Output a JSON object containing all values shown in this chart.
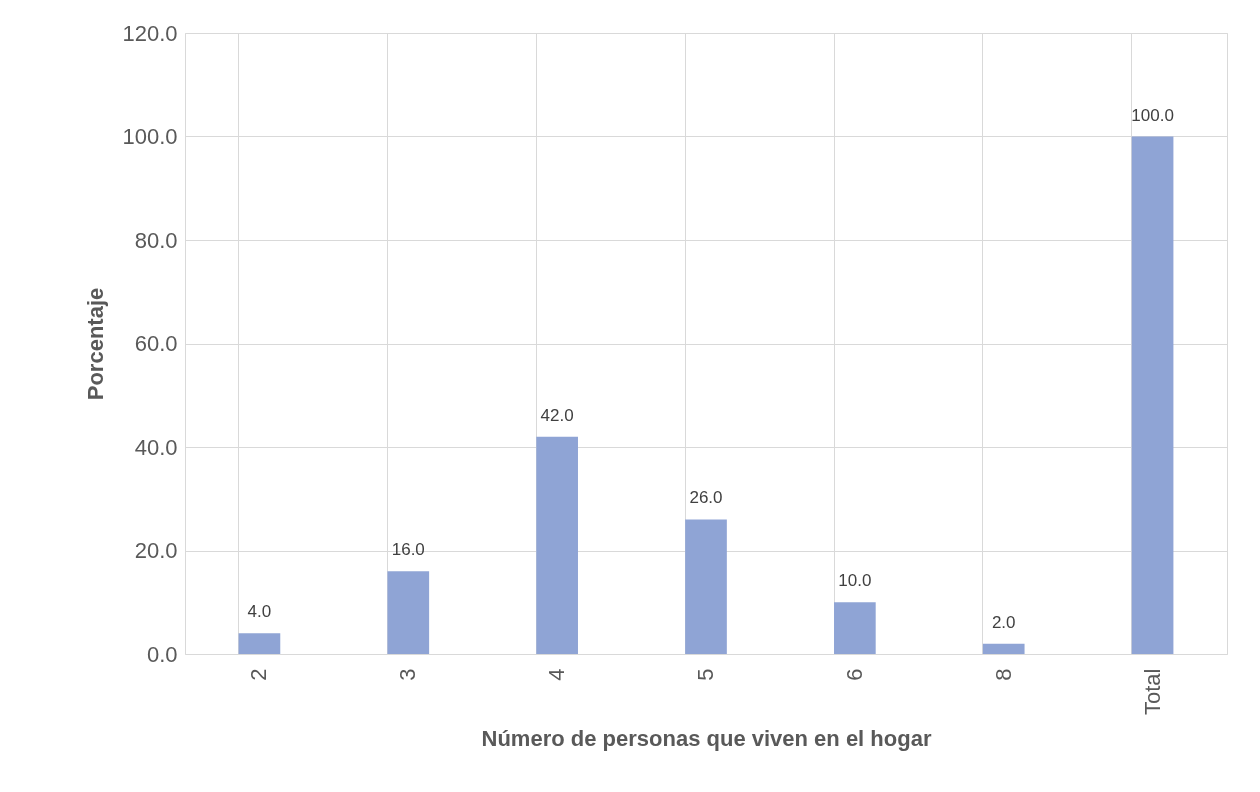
{
  "chart_data": {
    "type": "bar",
    "xlabel": "Número de personas que viven en el hogar",
    "ylabel": "Porcentaje",
    "categories": [
      "2",
      "3",
      "4",
      "5",
      "6",
      "8",
      "Total"
    ],
    "values": [
      4,
      16,
      42,
      26,
      10,
      2,
      100
    ],
    "value_labels": [
      "4.0",
      "16.0",
      "42.0",
      "26.0",
      "10.0",
      "2.0",
      "100.0"
    ],
    "color": "#8fa4d5",
    "ylim": [
      0,
      120
    ],
    "yticks": [
      {
        "value": 0,
        "label": "0.0"
      },
      {
        "value": 20,
        "label": "20.0"
      },
      {
        "value": 40,
        "label": "40.0"
      },
      {
        "value": 60,
        "label": "60.0"
      },
      {
        "value": 80,
        "label": "80.0"
      },
      {
        "value": 100,
        "label": "100.0"
      },
      {
        "value": 120,
        "label": "120.0"
      }
    ],
    "grid": true
  }
}
